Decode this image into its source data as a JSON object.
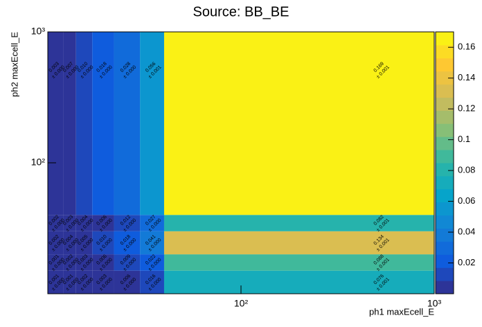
{
  "chart_data": {
    "type": "heatmap",
    "title": "Source: BB_BE",
    "x_label": "ph1 maxEcell_E",
    "y_label": "ph2 maxEcell_E",
    "x_log": true,
    "y_log": true,
    "xlim": [
      10,
      1000
    ],
    "ylim": [
      10,
      1000
    ],
    "xticks": [
      {
        "value": 100,
        "label": "10²"
      },
      {
        "value": 1000,
        "label": "10³"
      }
    ],
    "yticks": [
      {
        "value": 100,
        "label": "10²"
      },
      {
        "value": 1000,
        "label": "10³"
      }
    ],
    "x_edges": [
      10,
      12,
      14,
      17,
      22,
      30,
      40,
      1000
    ],
    "y_edges": [
      10,
      15,
      20,
      30,
      40,
      1000
    ],
    "z": [
      [
        0.001,
        0.001,
        0.002,
        0.003,
        0.006,
        0.016,
        0.076
      ],
      [
        0.001,
        0.002,
        0.003,
        0.006,
        0.009,
        0.022,
        0.088
      ],
      [
        0.002,
        0.004,
        0.005,
        0.01,
        0.018,
        0.041,
        0.134
      ],
      [
        0.002,
        0.003,
        0.004,
        0.006,
        0.012,
        0.027,
        0.082
      ],
      [
        0.003,
        0.007,
        0.01,
        0.018,
        0.028,
        0.056,
        0.169
      ]
    ],
    "z_labels": [
      [
        "0.001",
        "0.001",
        "0.002",
        "0.003",
        "0.006",
        "0.016",
        "0.076"
      ],
      [
        "0.001",
        "0.002",
        "0.003",
        "0.006",
        "0.009",
        "0.022",
        "0.088"
      ],
      [
        "0.002",
        "0.004",
        "0.005",
        "0.010",
        "0.018",
        "0.041",
        "0.134"
      ],
      [
        "0.002",
        "0.003",
        "0.004",
        "0.006",
        "0.012",
        "0.027",
        "0.082"
      ],
      [
        "0.003",
        "0.007",
        "0.010",
        "0.018",
        "0.028",
        "0.056",
        "0.169"
      ]
    ],
    "z_errors": [
      [
        0,
        0,
        0,
        0,
        0,
        0,
        0.001
      ],
      [
        0,
        0,
        0,
        0,
        0,
        0,
        0.001
      ],
      [
        0,
        0,
        0,
        0,
        0,
        0,
        0.001
      ],
      [
        0,
        0,
        0,
        0,
        0,
        0,
        0.001
      ],
      [
        0,
        0,
        0,
        0,
        0,
        0.001,
        0.001
      ]
    ],
    "z_error_labels": [
      [
        "± 0.000",
        "± 0.000",
        "± 0.000",
        "± 0.000",
        "± 0.000",
        "± 0.000",
        "± 0.001"
      ],
      [
        "± 0.000",
        "± 0.000",
        "± 0.000",
        "± 0.000",
        "± 0.000",
        "± 0.000",
        "± 0.001"
      ],
      [
        "± 0.000",
        "± 0.000",
        "± 0.000",
        "± 0.000",
        "± 0.000",
        "± 0.000",
        "± 0.001"
      ],
      [
        "± 0.000",
        "± 0.000",
        "± 0.000",
        "± 0.000",
        "± 0.000",
        "± 0.000",
        "± 0.001"
      ],
      [
        "± 0.000",
        "± 0.000",
        "± 0.000",
        "± 0.000",
        "± 0.000",
        "± 0.001",
        "± 0.001"
      ]
    ],
    "zlim": [
      0,
      0.17
    ],
    "zticks": [
      0.02,
      0.04,
      0.06,
      0.08,
      0.1,
      0.12,
      0.14,
      0.16
    ],
    "levels": 20,
    "colormap": [
      "#352a87",
      "#0f5cdd",
      "#1481d6",
      "#06a4ca",
      "#2eb7a4",
      "#87bf77",
      "#d1bb59",
      "#fec832",
      "#f9fb0e"
    ]
  }
}
